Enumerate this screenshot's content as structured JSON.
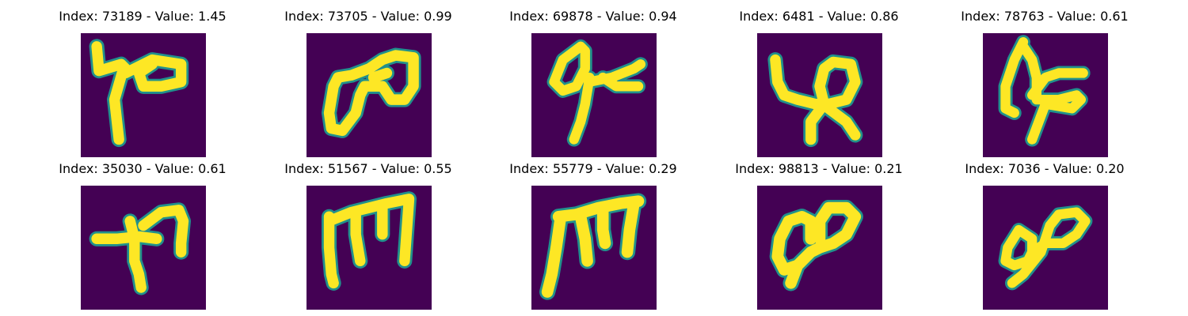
{
  "figure": {
    "panels": [
      {
        "title": "Index: 73189 - Value: 1.45",
        "glyph": "g1"
      },
      {
        "title": "Index: 73705 - Value: 0.99",
        "glyph": "g2"
      },
      {
        "title": "Index: 69878 - Value: 0.94",
        "glyph": "g3"
      },
      {
        "title": "Index: 6481 - Value: 0.86",
        "glyph": "g4"
      },
      {
        "title": "Index: 78763 - Value: 0.61",
        "glyph": "g5"
      },
      {
        "title": "Index: 35030 - Value: 0.61",
        "glyph": "g6"
      },
      {
        "title": "Index: 51567 - Value: 0.55",
        "glyph": "g7"
      },
      {
        "title": "Index: 55779 - Value: 0.29",
        "glyph": "g8"
      },
      {
        "title": "Index: 98813 - Value: 0.21",
        "glyph": "g9"
      },
      {
        "title": "Index: 7036 - Value: 0.20",
        "glyph": "g10"
      }
    ],
    "colors": {
      "background": "#440154",
      "stroke": "#fde725",
      "edge": "#21918c"
    }
  }
}
